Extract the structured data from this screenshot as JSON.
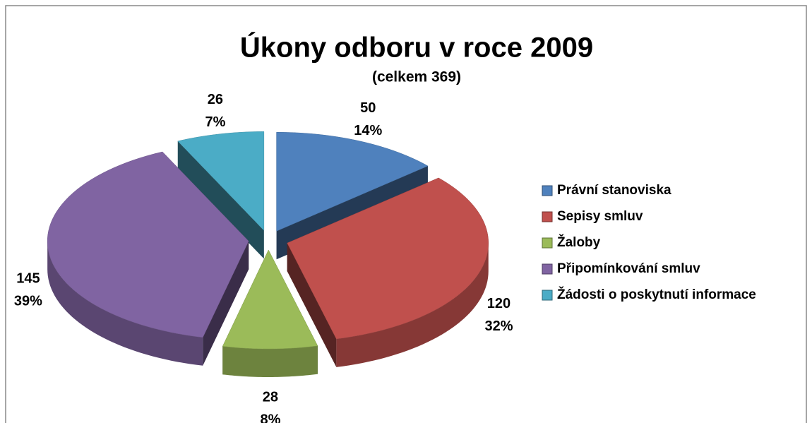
{
  "chart_data": {
    "type": "pie",
    "title": "Úkony odboru v roce 2009",
    "subtitle": "(celkem 369)",
    "categories": [
      "Právní stanoviska",
      "Sepisy smluv",
      "Žaloby",
      "Připomínkování smluv",
      "Žádosti o poskytnutí informace"
    ],
    "values": [
      50,
      120,
      28,
      145,
      26
    ],
    "percent_labels": [
      "14%",
      "32%",
      "8%",
      "39%",
      "7%"
    ],
    "colors": [
      "#4f81bd",
      "#c0504d",
      "#9bbb59",
      "#8064a2",
      "#4bacc6"
    ],
    "legend": "right"
  }
}
